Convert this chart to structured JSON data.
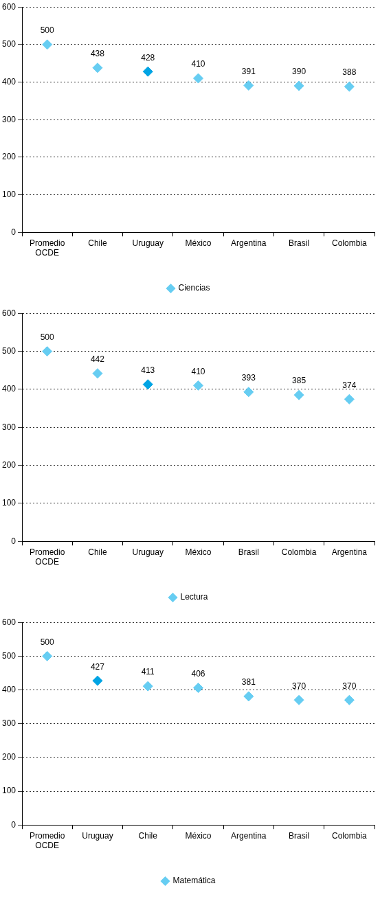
{
  "chart_data": [
    {
      "type": "scatter",
      "categories": [
        "Promedio OCDE",
        "Chile",
        "Uruguay",
        "México",
        "Argentina",
        "Brasil",
        "Colombia"
      ],
      "ylim": [
        0,
        600
      ],
      "yticks": [
        0,
        100,
        200,
        300,
        400,
        500,
        600
      ],
      "grid": "y",
      "legend": "bottom",
      "marker": "diamond",
      "data_labels": true,
      "series": [
        {
          "name": "Ciencias",
          "color": "#66cdf2",
          "colors": [
            "#66cdf2",
            "#66cdf2",
            "#00a4e4",
            "#66cdf2",
            "#66cdf2",
            "#66cdf2",
            "#66cdf2"
          ],
          "values": [
            500,
            438,
            428,
            410,
            391,
            390,
            388
          ]
        }
      ]
    },
    {
      "type": "scatter",
      "categories": [
        "Promedio OCDE",
        "Chile",
        "Uruguay",
        "México",
        "Brasil",
        "Colombia",
        "Argentina"
      ],
      "ylim": [
        0,
        600
      ],
      "yticks": [
        0,
        100,
        200,
        300,
        400,
        500,
        600
      ],
      "grid": "y",
      "legend": "bottom",
      "marker": "diamond",
      "data_labels": true,
      "series": [
        {
          "name": "Lectura",
          "color": "#66cdf2",
          "colors": [
            "#66cdf2",
            "#66cdf2",
            "#00a4e4",
            "#66cdf2",
            "#66cdf2",
            "#66cdf2",
            "#66cdf2"
          ],
          "values": [
            500,
            442,
            413,
            410,
            393,
            385,
            374
          ]
        }
      ]
    },
    {
      "type": "scatter",
      "categories": [
        "Promedio OCDE",
        "Uruguay",
        "Chile",
        "México",
        "Argentina",
        "Brasil",
        "Colombia"
      ],
      "ylim": [
        0,
        600
      ],
      "yticks": [
        0,
        100,
        200,
        300,
        400,
        500,
        600
      ],
      "grid": "y",
      "legend": "bottom",
      "marker": "diamond",
      "data_labels": true,
      "series": [
        {
          "name": "Matemática",
          "color": "#66cdf2",
          "colors": [
            "#66cdf2",
            "#00a4e4",
            "#66cdf2",
            "#66cdf2",
            "#66cdf2",
            "#66cdf2",
            "#66cdf2"
          ],
          "values": [
            500,
            427,
            411,
            406,
            381,
            370,
            370
          ]
        }
      ]
    }
  ]
}
